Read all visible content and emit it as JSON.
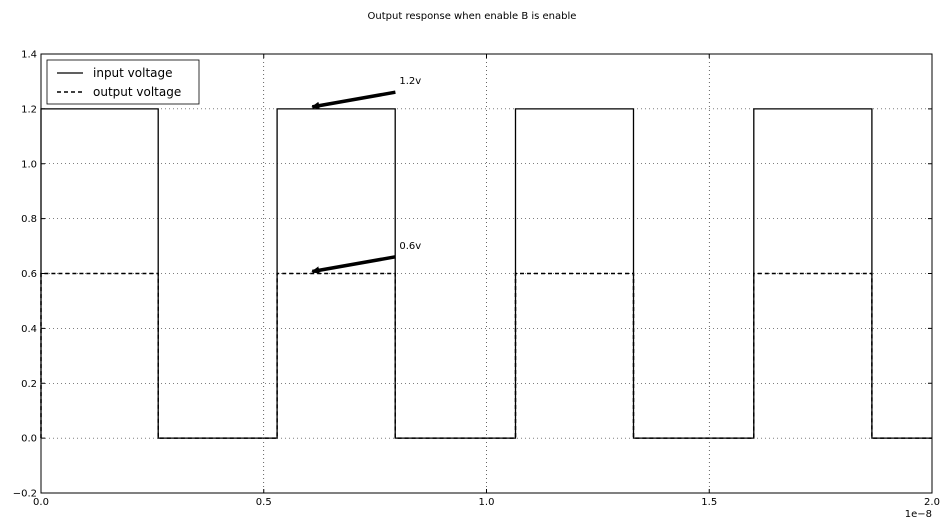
{
  "chart_data": {
    "type": "line",
    "title": "Output response when enable B is enable",
    "xlabel": "",
    "ylabel": "",
    "xlim": [
      0.0,
      2.0
    ],
    "ylim": [
      -0.2,
      1.4
    ],
    "x_ticks": [
      0.0,
      0.5,
      1.0,
      1.5,
      2.0
    ],
    "x_tick_labels": [
      "0.0",
      "0.5",
      "1.0",
      "1.5",
      "2.0"
    ],
    "x_exponent_label": "1e−8",
    "y_ticks": [
      -0.2,
      0.0,
      0.2,
      0.4,
      0.6,
      0.8,
      1.0,
      1.2,
      1.4
    ],
    "y_tick_labels": [
      "−0.2",
      "0.0",
      "0.2",
      "0.4",
      "0.6",
      "0.8",
      "1.0",
      "1.2",
      "1.4"
    ],
    "grid": true,
    "legend_position": "top-left",
    "series": [
      {
        "name": "input voltage",
        "style": "solid",
        "color": "#000000",
        "x": [
          0.0,
          0.0,
          0.263,
          0.263,
          0.53,
          0.53,
          0.795,
          0.795,
          1.065,
          1.065,
          1.33,
          1.33,
          1.6,
          1.6,
          1.865,
          1.865,
          2.0
        ],
        "y": [
          0.0,
          1.2,
          1.2,
          0.0,
          0.0,
          1.2,
          1.2,
          0.0,
          0.0,
          1.2,
          1.2,
          0.0,
          0.0,
          1.2,
          1.2,
          0.0,
          0.0
        ]
      },
      {
        "name": "output voltage",
        "style": "dashed",
        "color": "#000000",
        "x": [
          0.0,
          0.0,
          0.263,
          0.263,
          0.53,
          0.53,
          0.795,
          0.795,
          1.065,
          1.065,
          1.33,
          1.33,
          1.6,
          1.6,
          1.865,
          1.865,
          2.0
        ],
        "y": [
          0.0,
          0.6,
          0.6,
          0.0,
          0.0,
          0.6,
          0.6,
          0.0,
          0.0,
          0.6,
          0.6,
          0.0,
          0.0,
          0.6,
          0.6,
          0.0,
          0.0
        ]
      }
    ],
    "annotations": [
      {
        "text": "1.2v",
        "xy": [
          0.6,
          1.2
        ],
        "text_xy": [
          0.8,
          1.29
        ]
      },
      {
        "text": "0.6v",
        "xy": [
          0.6,
          0.6
        ],
        "text_xy": [
          0.8,
          0.69
        ]
      }
    ]
  }
}
